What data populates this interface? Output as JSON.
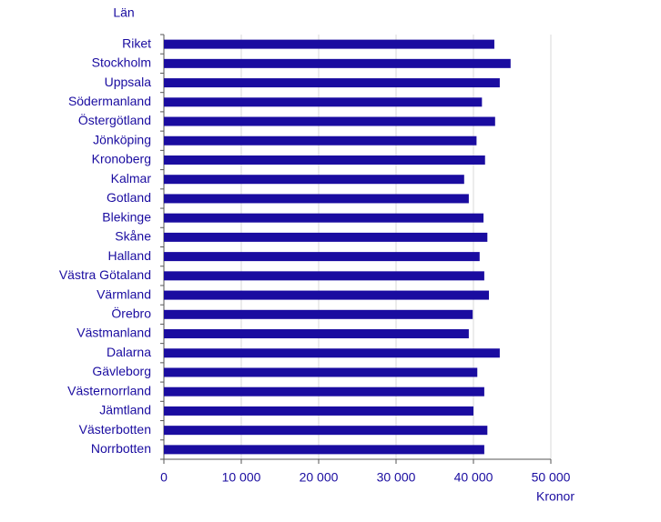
{
  "chart_data": {
    "type": "barh",
    "y_label": "Län",
    "x_label": "Kronor",
    "categories": [
      "Riket",
      "Stockholm",
      "Uppsala",
      "Södermanland",
      "Östergötland",
      "Jönköping",
      "Kronoberg",
      "Kalmar",
      "Gotland",
      "Blekinge",
      "Skåne",
      "Halland",
      "Västra Götaland",
      "Värmland",
      "Örebro",
      "Västmanland",
      "Dalarna",
      "Gävleborg",
      "Västernorrland",
      "Jämtland",
      "Västerbotten",
      "Norrbotten"
    ],
    "values": [
      42700,
      44800,
      43400,
      41100,
      42800,
      40400,
      41500,
      38800,
      39400,
      41300,
      41800,
      40800,
      41400,
      42000,
      39900,
      39400,
      43400,
      40500,
      41400,
      40000,
      41800,
      41400
    ],
    "color": "#1a0ca0",
    "xlim": [
      0,
      50000
    ],
    "xticks": [
      0,
      {
        "value": 10000,
        "label": "10 000"
      },
      {
        "value": 20000,
        "label": "20 000"
      },
      {
        "value": 30000,
        "label": "30 000"
      },
      {
        "value": 40000,
        "label": "40 000"
      },
      {
        "value": 50000,
        "label": "50 000"
      }
    ],
    "grid": true
  }
}
